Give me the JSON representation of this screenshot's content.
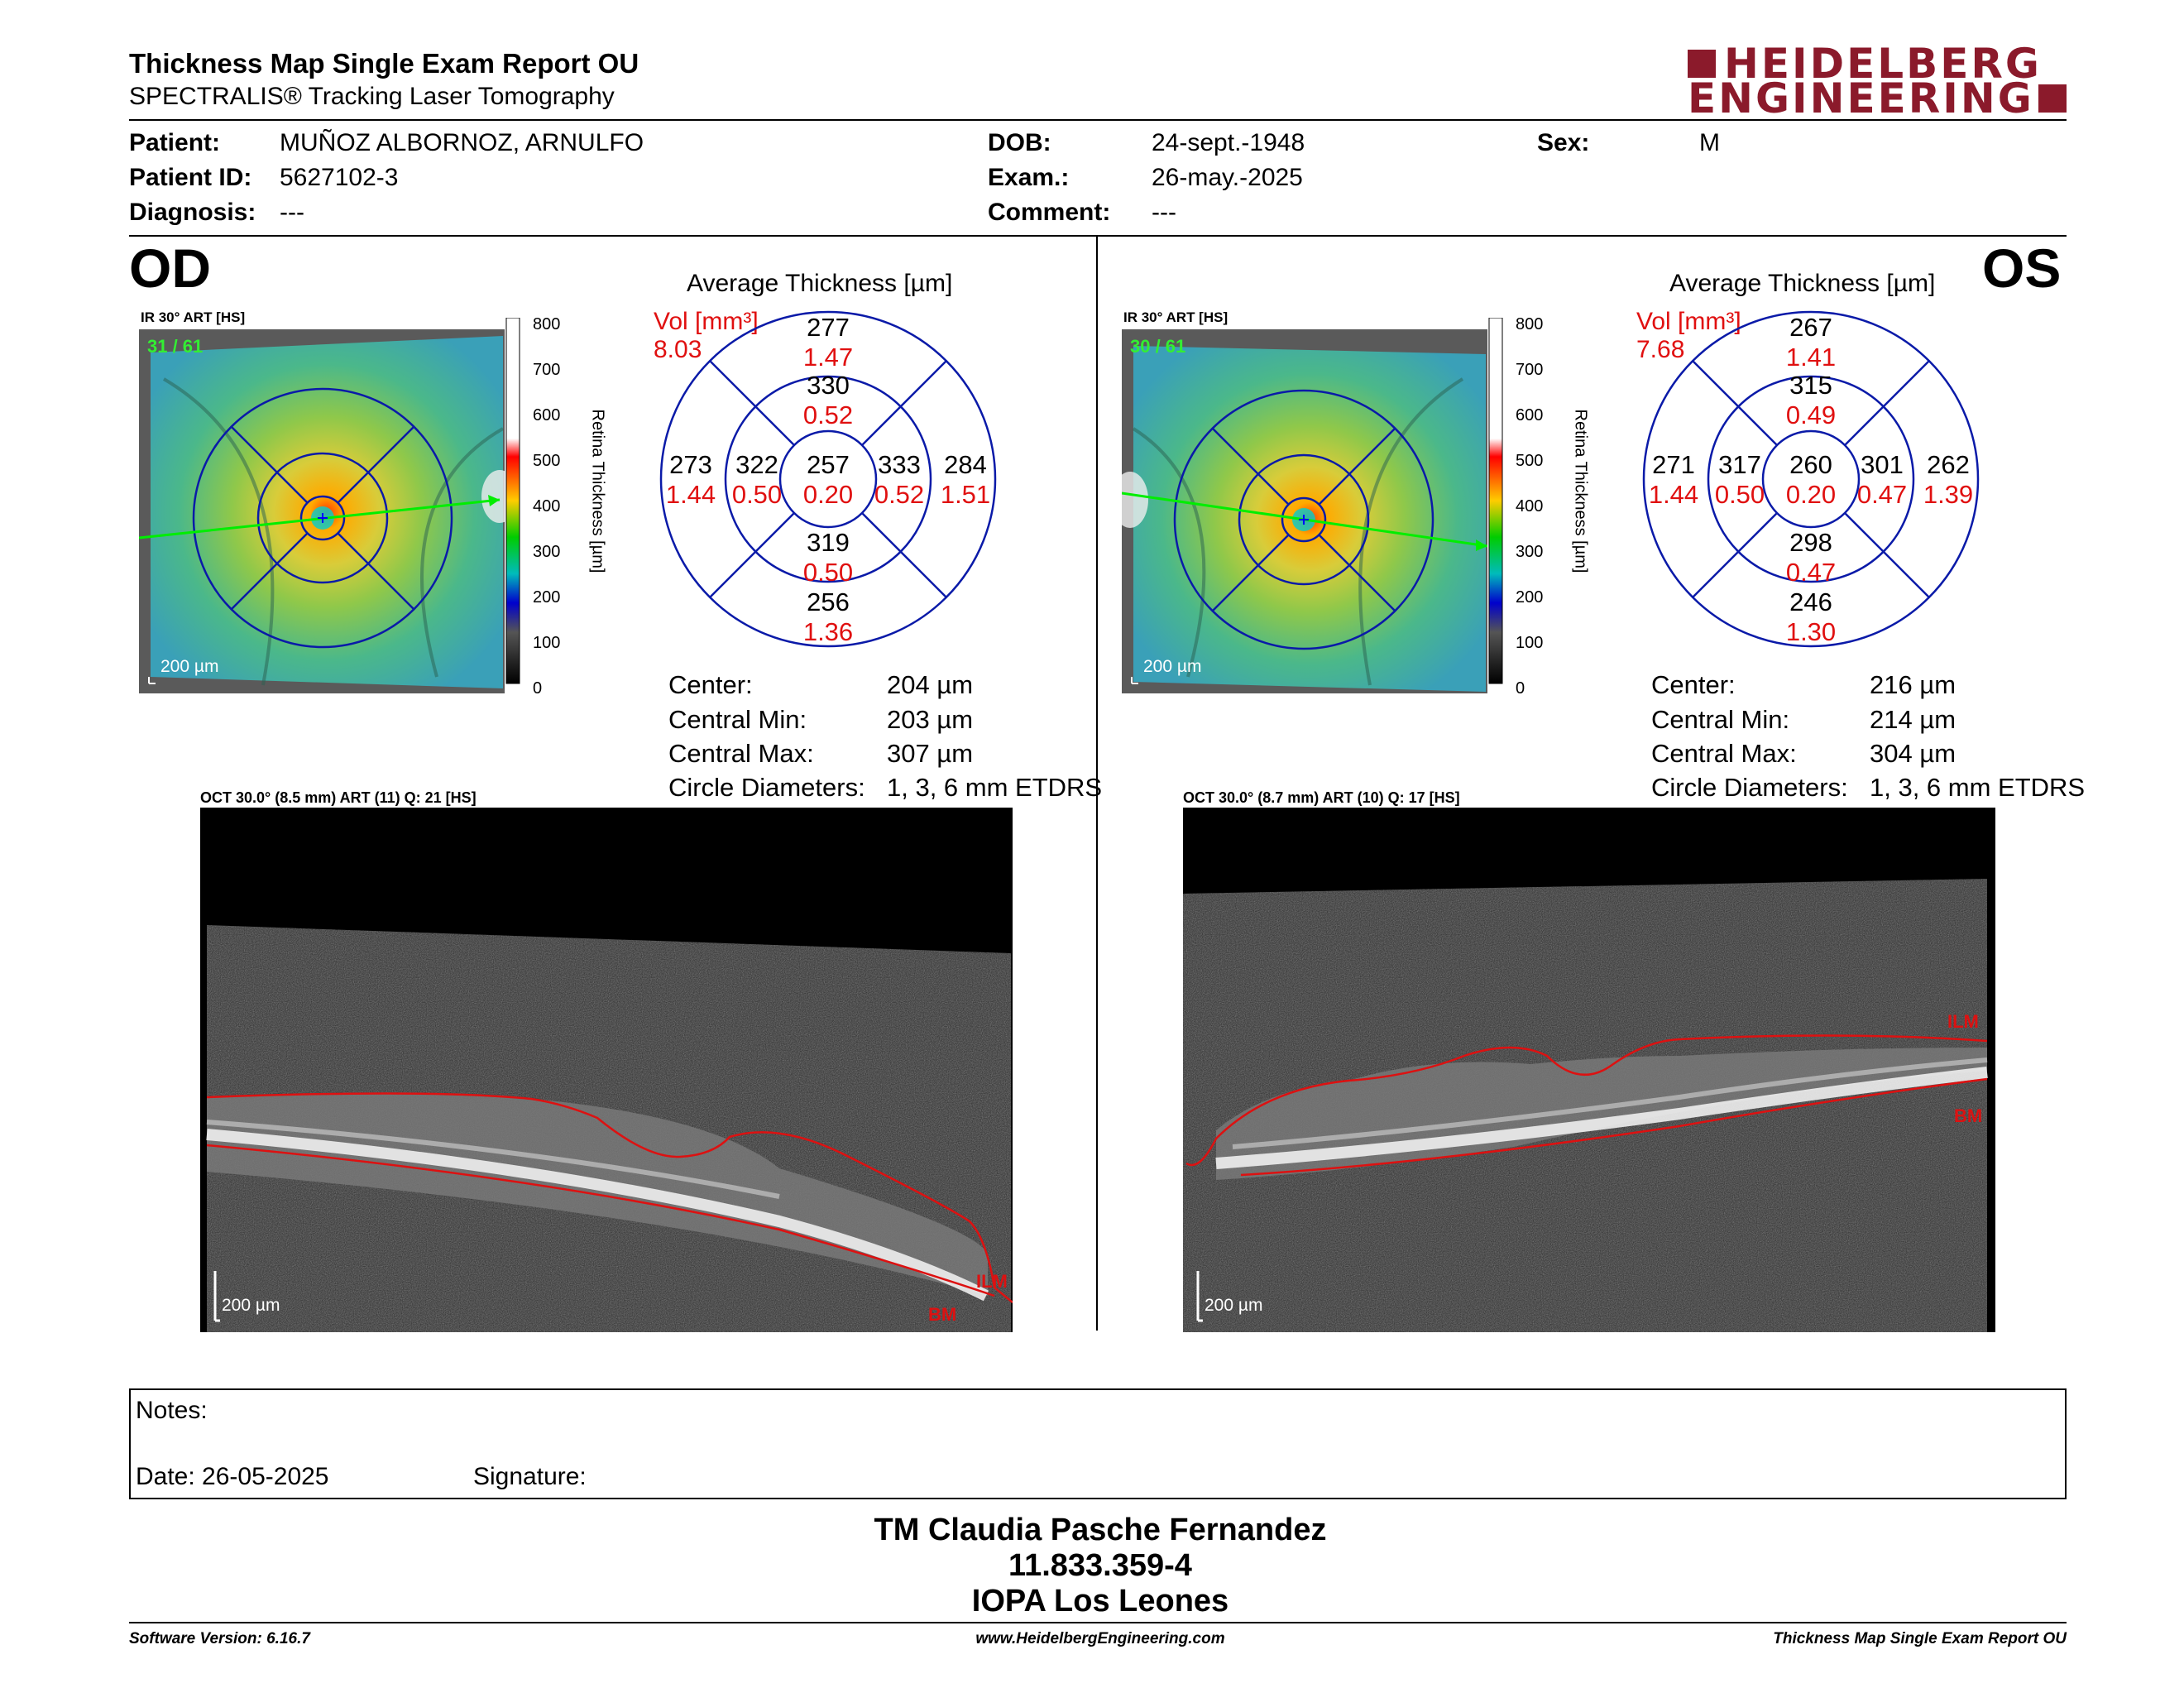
{
  "report": {
    "title": "Thickness Map Single Exam Report OU",
    "subtitle": "SPECTRALIS® Tracking Laser Tomography",
    "logo_line1": "HEIDELBERG",
    "logo_line2": "ENGINEERING",
    "colors": {
      "brand": "#8b1a2b",
      "red": "#e01010"
    }
  },
  "patient": {
    "patient_label": "Patient:",
    "patient_value": "MUÑOZ ALBORNOZ, ARNULFO",
    "id_label": "Patient ID:",
    "id_value": "5627102-3",
    "diagnosis_label": "Diagnosis:",
    "diagnosis_value": "---",
    "dob_label": "DOB:",
    "dob_value": "24-sept.-1948",
    "exam_label": "Exam.:",
    "exam_value": "26-may.-2025",
    "comment_label": "Comment:",
    "comment_value": "---",
    "sex_label": "Sex:",
    "sex_value": "M"
  },
  "od": {
    "eye": "OD",
    "ir_label": "IR 30° ART [HS]",
    "ir_counter": "31 / 61",
    "scale": "200 µm",
    "colorbar_ticks": [
      "800",
      "700",
      "600",
      "500",
      "400",
      "300",
      "200",
      "100",
      "0"
    ],
    "colorbar_title": "Retina  Thickness [µm]",
    "avg_title": "Average Thickness [µm]",
    "vol_label": "Vol [mm³]",
    "vol_value": "8.03",
    "etdrs": {
      "center": {
        "t": "257",
        "v": "0.20"
      },
      "inner_sup": {
        "t": "330",
        "v": "0.52"
      },
      "inner_inf": {
        "t": "319",
        "v": "0.50"
      },
      "inner_left": {
        "t": "322",
        "v": "0.50"
      },
      "inner_right": {
        "t": "333",
        "v": "0.52"
      },
      "outer_sup": {
        "t": "277",
        "v": "1.47"
      },
      "outer_inf": {
        "t": "256",
        "v": "1.36"
      },
      "outer_left": {
        "t": "273",
        "v": "1.44"
      },
      "outer_right": {
        "t": "284",
        "v": "1.51"
      }
    },
    "stats": [
      {
        "label": "Center:",
        "value": "204 µm"
      },
      {
        "label": "Central Min:",
        "value": "203 µm"
      },
      {
        "label": "Central Max:",
        "value": "307 µm"
      },
      {
        "label": "Circle Diameters:",
        "value": "1, 3, 6 mm ETDRS"
      }
    ],
    "oct_label": "OCT 30.0° (8.5 mm) ART (11) Q: 21 [HS]",
    "oct_scale": "200 µm",
    "ilm": "ILM",
    "bm": "BM"
  },
  "os": {
    "eye": "OS",
    "ir_label": "IR 30° ART [HS]",
    "ir_counter": "30 / 61",
    "scale": "200 µm",
    "colorbar_ticks": [
      "800",
      "700",
      "600",
      "500",
      "400",
      "300",
      "200",
      "100",
      "0"
    ],
    "colorbar_title": "Retina  Thickness [µm]",
    "avg_title": "Average Thickness [µm]",
    "vol_label": "Vol [mm³]",
    "vol_value": "7.68",
    "etdrs": {
      "center": {
        "t": "260",
        "v": "0.20"
      },
      "inner_sup": {
        "t": "315",
        "v": "0.49"
      },
      "inner_inf": {
        "t": "298",
        "v": "0.47"
      },
      "inner_left": {
        "t": "317",
        "v": "0.50"
      },
      "inner_right": {
        "t": "301",
        "v": "0.47"
      },
      "outer_sup": {
        "t": "267",
        "v": "1.41"
      },
      "outer_inf": {
        "t": "246",
        "v": "1.30"
      },
      "outer_left": {
        "t": "271",
        "v": "1.44"
      },
      "outer_right": {
        "t": "262",
        "v": "1.39"
      }
    },
    "stats": [
      {
        "label": "Center:",
        "value": "216 µm"
      },
      {
        "label": "Central Min:",
        "value": "214 µm"
      },
      {
        "label": "Central Max:",
        "value": "304 µm"
      },
      {
        "label": "Circle Diameters:",
        "value": "1, 3, 6 mm ETDRS"
      }
    ],
    "oct_label": "OCT 30.0° (8.7 mm) ART (10) Q: 17 [HS]",
    "oct_scale": "200 µm",
    "ilm": "ILM",
    "bm": "BM"
  },
  "notes": {
    "notes_label": "Notes:",
    "date_label": "Date: 26-05-2025",
    "signature_label": "Signature:"
  },
  "signer": {
    "name": "TM Claudia Pasche Fernandez",
    "rut": "11.833.359-4",
    "institution": "IOPA Los Leones"
  },
  "footer": {
    "software": "Software Version: 6.16.7",
    "website": "www.HeidelbergEngineering.com",
    "report_name": "Thickness Map Single Exam Report OU"
  }
}
